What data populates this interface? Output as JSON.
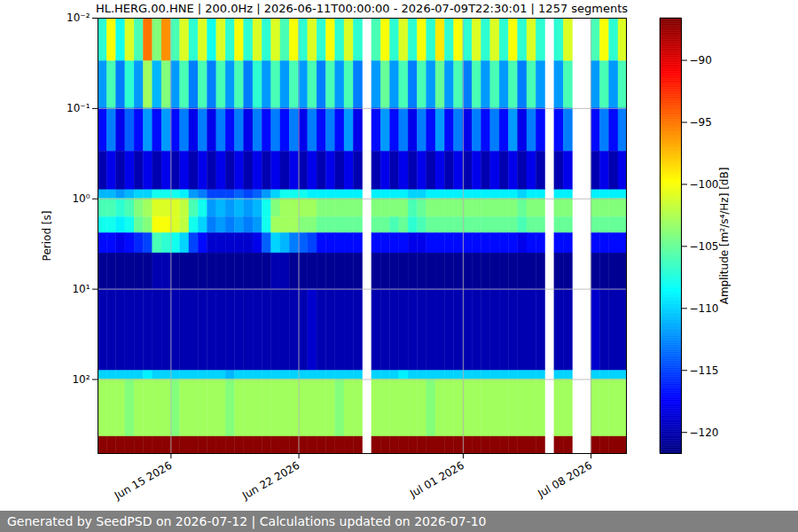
{
  "chart_data": {
    "type": "heatmap",
    "title": "HL.HERG.00.HNE | 200.0Hz | 2026-06-11T00:00:00 - 2026-07-09T22:30:01 | 1257 segments",
    "ylabel": "Period [s]",
    "log": "y",
    "grid": true,
    "xlim": [
      "2026-06-11T00:00",
      "2026-07-09T22:30"
    ],
    "xticks": [
      {
        "value": "2026-06-15",
        "label": "Jun 15 2026"
      },
      {
        "value": "2026-06-22",
        "label": "Jun 22 2026"
      },
      {
        "value": "2026-07-01",
        "label": "Jul 01 2026"
      },
      {
        "value": "2026-07-08",
        "label": "Jul 08 2026"
      }
    ],
    "ylim": [
      0.01,
      660
    ],
    "yticks": [
      {
        "value": 0.01,
        "label": "10⁻²"
      },
      {
        "value": 0.1,
        "label": "10⁻¹"
      },
      {
        "value": 1,
        "label": "10⁰"
      },
      {
        "value": 10,
        "label": "10¹"
      },
      {
        "value": 100,
        "label": "10²"
      }
    ],
    "y_bins": [
      0.01,
      0.03,
      0.1,
      0.3,
      0.8,
      1.0,
      1.6,
      2.4,
      4,
      10,
      80,
      100,
      430,
      660
    ],
    "x": [
      "2026-06-11T00:00",
      "2026-06-11T12:00",
      "2026-06-12T00:00",
      "2026-06-12T12:00",
      "2026-06-13T00:00",
      "2026-06-13T12:00",
      "2026-06-14T00:00",
      "2026-06-14T12:00",
      "2026-06-15T00:00",
      "2026-06-15T12:00",
      "2026-06-16T00:00",
      "2026-06-16T12:00",
      "2026-06-17T00:00",
      "2026-06-17T12:00",
      "2026-06-18T00:00",
      "2026-06-18T12:00",
      "2026-06-19T00:00",
      "2026-06-19T12:00",
      "2026-06-20T00:00",
      "2026-06-20T12:00",
      "2026-06-21T00:00",
      "2026-06-21T12:00",
      "2026-06-22T00:00",
      "2026-06-22T12:00",
      "2026-06-23T00:00",
      "2026-06-23T12:00",
      "2026-06-24T00:00",
      "2026-06-24T12:00",
      "2026-06-25T00:00",
      "2026-06-25T12:00",
      "2026-06-26T00:00",
      "2026-06-26T12:00",
      "2026-06-27T00:00",
      "2026-06-27T12:00",
      "2026-06-28T00:00",
      "2026-06-28T12:00",
      "2026-06-29T00:00",
      "2026-06-29T12:00",
      "2026-06-30T00:00",
      "2026-06-30T12:00",
      "2026-07-01T00:00",
      "2026-07-01T12:00",
      "2026-07-02T00:00",
      "2026-07-02T12:00",
      "2026-07-03T00:00",
      "2026-07-03T12:00",
      "2026-07-04T00:00",
      "2026-07-04T12:00",
      "2026-07-05T00:00",
      "2026-07-05T12:00",
      "2026-07-06T00:00",
      "2026-07-06T12:00",
      "2026-07-07T00:00",
      "2026-07-07T12:00",
      "2026-07-08T00:00",
      "2026-07-08T12:00",
      "2026-07-09T00:00",
      "2026-07-09T12:00"
    ],
    "values": [
      [
        -107,
        -112,
        -117,
        -120,
        -111,
        -106,
        -108,
        -117,
        -121,
        -120,
        -110,
        -103,
        -87
      ],
      [
        -100,
        -106,
        -113,
        -118,
        -111,
        -106,
        -108,
        -117,
        -121,
        -120,
        -110,
        -103,
        -87
      ],
      [
        -108,
        -113,
        -118,
        -120,
        -112,
        -107,
        -109,
        -118,
        -121,
        -120,
        -110,
        -103,
        -87
      ],
      [
        -101,
        -107,
        -114,
        -118,
        -111,
        -106,
        -108,
        -117,
        -121,
        -120,
        -110,
        -104,
        -87
      ],
      [
        -106,
        -112,
        -117,
        -120,
        -110,
        -104,
        -105,
        -116,
        -121,
        -120,
        -110,
        -103,
        -87
      ],
      [
        -95,
        -103,
        -112,
        -118,
        -110,
        -103,
        -104,
        -115,
        -121,
        -120,
        -109,
        -103,
        -87
      ],
      [
        -104,
        -111,
        -117,
        -120,
        -108,
        -101,
        -100,
        -106,
        -120,
        -120,
        -110,
        -103,
        -87
      ],
      [
        -96,
        -104,
        -112,
        -118,
        -108,
        -101,
        -100,
        -107,
        -120,
        -120,
        -110,
        -103,
        -87
      ],
      [
        -106,
        -112,
        -117,
        -120,
        -108,
        -101,
        -101,
        -108,
        -121,
        -120,
        -110,
        -104,
        -87
      ],
      [
        -101,
        -106,
        -113,
        -118,
        -109,
        -102,
        -102,
        -110,
        -121,
        -120,
        -110,
        -103,
        -87
      ],
      [
        -107,
        -113,
        -118,
        -120,
        -112,
        -106,
        -108,
        -115,
        -121,
        -120,
        -110,
        -103,
        -87
      ],
      [
        -101,
        -106,
        -113,
        -118,
        -113,
        -108,
        -110,
        -117,
        -121,
        -120,
        -110,
        -103,
        -87
      ],
      [
        -108,
        -113,
        -118,
        -120,
        -115,
        -112,
        -113,
        -119,
        -121,
        -120,
        -110,
        -103,
        -87
      ],
      [
        -101,
        -106,
        -113,
        -118,
        -115,
        -111,
        -112,
        -119,
        -121,
        -120,
        -110,
        -103,
        -87
      ],
      [
        -107,
        -112,
        -117,
        -120,
        -115,
        -112,
        -113,
        -119,
        -121,
        -120,
        -111,
        -104,
        -87
      ],
      [
        -100,
        -106,
        -113,
        -118,
        -114,
        -111,
        -112,
        -119,
        -121,
        -120,
        -110,
        -103,
        -87
      ],
      [
        -107,
        -113,
        -118,
        -120,
        -115,
        -112,
        -113,
        -119,
        -121,
        -120,
        -110,
        -103,
        -87
      ],
      [
        -101,
        -107,
        -113,
        -118,
        -114,
        -111,
        -112,
        -118,
        -121,
        -120,
        -110,
        -103,
        -87
      ],
      [
        -107,
        -112,
        -117,
        -120,
        -112,
        -108,
        -108,
        -114,
        -121,
        -120,
        -110,
        -103,
        -87
      ],
      [
        -101,
        -106,
        -113,
        -118,
        -110,
        -104,
        -103,
        -110,
        -120,
        -120,
        -110,
        -103,
        -87
      ],
      [
        -106,
        -112,
        -117,
        -120,
        -108,
        -103,
        -103,
        -111,
        -120,
        -120,
        -110,
        -103,
        -87
      ],
      [
        -100,
        -106,
        -113,
        -118,
        -108,
        -103,
        -103,
        -113,
        -121,
        -120,
        -110,
        -103,
        -87
      ],
      [
        -107,
        -112,
        -118,
        -120,
        -108,
        -103,
        -104,
        -114,
        -121,
        -120,
        -110,
        -103,
        -87
      ],
      [
        -101,
        -106,
        -113,
        -118,
        -109,
        -103,
        -104,
        -115,
        -121,
        -119,
        -110,
        -103,
        -87
      ],
      [
        -107,
        -113,
        -117,
        -120,
        -109,
        -104,
        -105,
        -117,
        -121,
        -120,
        -110,
        -103,
        -87
      ],
      [
        -100,
        -106,
        -113,
        -118,
        -109,
        -104,
        -105,
        -117,
        -121,
        -120,
        -110,
        -103,
        -87
      ],
      [
        -107,
        -112,
        -117,
        -120,
        -109,
        -104,
        -105,
        -117,
        -121,
        -120,
        -110,
        -104,
        -87
      ],
      [
        -101,
        -106,
        -112,
        -118,
        -109,
        -104,
        -105,
        -117,
        -121,
        -120,
        -110,
        -103,
        -87
      ],
      [
        -107,
        -113,
        -118,
        -120,
        -109,
        -104,
        -105,
        -117,
        -121,
        -120,
        -110,
        -103,
        -87
      ],
      null,
      [
        -106,
        -112,
        -117,
        -120,
        -109,
        -104,
        -105,
        -117,
        -121,
        -120,
        -110,
        -103,
        -87
      ],
      [
        -100,
        -105,
        -112,
        -118,
        -109,
        -104,
        -105,
        -117,
        -121,
        -120,
        -110,
        -103,
        -87
      ],
      [
        -107,
        -112,
        -117,
        -120,
        -109,
        -104,
        -106,
        -117,
        -121,
        -120,
        -110,
        -103,
        -87
      ],
      [
        -101,
        -106,
        -113,
        -118,
        -109,
        -104,
        -105,
        -117,
        -121,
        -120,
        -109,
        -103,
        -87
      ],
      [
        -107,
        -113,
        -118,
        -120,
        -110,
        -106,
        -107,
        -118,
        -121,
        -120,
        -110,
        -103,
        -87
      ],
      [
        -100,
        -106,
        -113,
        -118,
        -110,
        -105,
        -106,
        -118,
        -121,
        -120,
        -110,
        -103,
        -87
      ],
      [
        -107,
        -112,
        -117,
        -120,
        -109,
        -104,
        -105,
        -117,
        -121,
        -120,
        -110,
        -104,
        -87
      ],
      [
        -99,
        -105,
        -112,
        -118,
        -109,
        -104,
        -105,
        -117,
        -121,
        -120,
        -110,
        -103,
        -87
      ],
      [
        -107,
        -112,
        -117,
        -120,
        -109,
        -104,
        -105,
        -117,
        -121,
        -120,
        -110,
        -103,
        -87
      ],
      [
        -100,
        -106,
        -113,
        -118,
        -109,
        -104,
        -105,
        -117,
        -121,
        -120,
        -110,
        -103,
        -87
      ],
      [
        -107,
        -113,
        -118,
        -120,
        -109,
        -104,
        -105,
        -117,
        -121,
        -120,
        -110,
        -103,
        -87
      ],
      [
        -101,
        -106,
        -113,
        -118,
        -109,
        -104,
        -105,
        -117,
        -121,
        -120,
        -110,
        -103,
        -87
      ],
      [
        -107,
        -112,
        -117,
        -120,
        -109,
        -104,
        -105,
        -117,
        -121,
        -120,
        -110,
        -103,
        -87
      ],
      [
        -101,
        -106,
        -113,
        -118,
        -109,
        -104,
        -105,
        -117,
        -121,
        -120,
        -110,
        -103,
        -87
      ],
      [
        -107,
        -112,
        -117,
        -120,
        -109,
        -104,
        -105,
        -117,
        -121,
        -120,
        -110,
        -103,
        -87
      ],
      [
        -100,
        -106,
        -112,
        -118,
        -109,
        -104,
        -105,
        -117,
        -121,
        -120,
        -110,
        -103,
        -87
      ],
      [
        -107,
        -113,
        -118,
        -120,
        -110,
        -105,
        -106,
        -118,
        -121,
        -120,
        -110,
        -103,
        -87
      ],
      [
        -101,
        -106,
        -113,
        -118,
        -109,
        -104,
        -105,
        -117,
        -121,
        -120,
        -110,
        -103,
        -87
      ],
      [
        -107,
        -112,
        -117,
        -120,
        -109,
        -104,
        -105,
        -117,
        -121,
        -120,
        -110,
        -103,
        -87
      ],
      null,
      [
        -107,
        -112,
        -117,
        -120,
        -109,
        -104,
        -105,
        -117,
        -121,
        -120,
        -110,
        -103,
        -87
      ],
      [
        -101,
        -106,
        -113,
        -118,
        -109,
        -104,
        -105,
        -117,
        -121,
        -120,
        -110,
        -103,
        -87
      ],
      null,
      null,
      [
        -106,
        -112,
        -117,
        -120,
        -109,
        -104,
        -105,
        -117,
        -121,
        -119,
        -110,
        -103,
        -87
      ],
      [
        -100,
        -106,
        -113,
        -118,
        -109,
        -104,
        -105,
        -117,
        -121,
        -120,
        -110,
        -103,
        -87
      ],
      [
        -107,
        -112,
        -117,
        -120,
        -109,
        -104,
        -105,
        -117,
        -121,
        -120,
        -110,
        -103,
        -87
      ],
      [
        -101,
        -106,
        -113,
        -118,
        -109,
        -104,
        -105,
        -117,
        -121,
        -120,
        -110,
        -103,
        -87
      ]
    ],
    "colorbar": {
      "label": "Amplitude [m²/s⁴/Hz] [dB]",
      "lim": [
        -121.7,
        -86.6
      ],
      "ticks": [
        -120,
        -115,
        -110,
        -105,
        -100,
        -95,
        -90
      ]
    },
    "footer": "Generated by SeedPSD on 2026-07-12 | Calculations updated on 2026-07-10"
  }
}
